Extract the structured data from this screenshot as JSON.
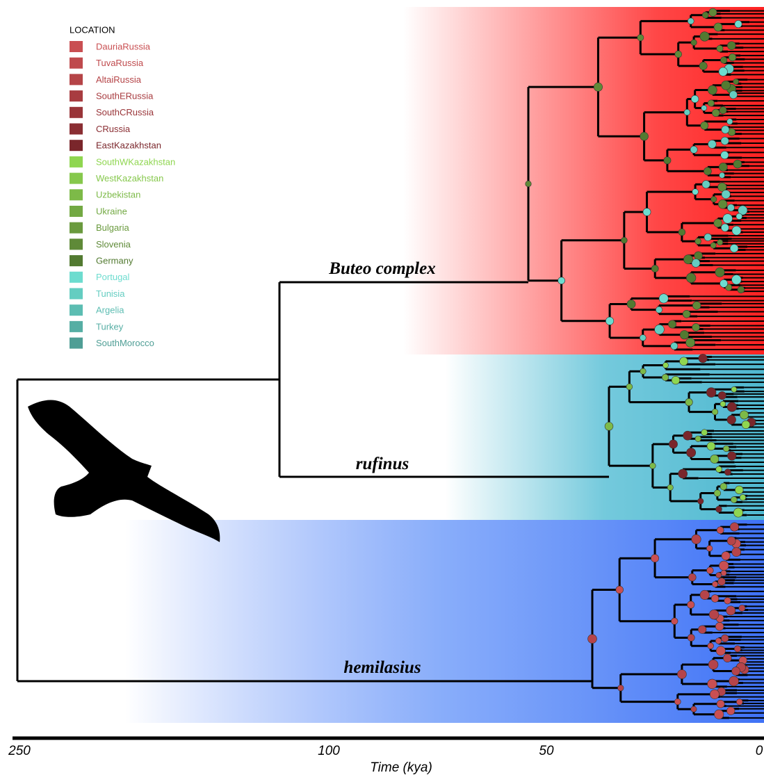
{
  "legend": {
    "title": "LOCATION",
    "items": [
      {
        "label": "DauriaRussia",
        "color": "#c94f52"
      },
      {
        "label": "TuvaRussia",
        "color": "#bf4a4d"
      },
      {
        "label": "AltaiRussia",
        "color": "#b54447"
      },
      {
        "label": "SouthERussia",
        "color": "#a83c40"
      },
      {
        "label": "SouthCRussia",
        "color": "#993539"
      },
      {
        "label": "CRussia",
        "color": "#8a2e33"
      },
      {
        "label": "EastKazakhstan",
        "color": "#7a262b"
      },
      {
        "label": "SouthWKazakhstan",
        "color": "#8fd650"
      },
      {
        "label": "WestKazakhstan",
        "color": "#86c84c"
      },
      {
        "label": "Uzbekistan",
        "color": "#7dba48"
      },
      {
        "label": "Ukraine",
        "color": "#73a943"
      },
      {
        "label": "Bulgaria",
        "color": "#6a9a3e"
      },
      {
        "label": "Slovenia",
        "color": "#5f8a38"
      },
      {
        "label": "Germany",
        "color": "#527a31"
      },
      {
        "label": "Portugal",
        "color": "#6ddccf"
      },
      {
        "label": "Tunisia",
        "color": "#64cdc1"
      },
      {
        "label": "Argelia",
        "color": "#5cbdb2"
      },
      {
        "label": "Turkey",
        "color": "#56aea4"
      },
      {
        "label": "SouthMorocco",
        "color": "#4f9e95"
      }
    ]
  },
  "clades": [
    "Buteo complex",
    "rufinus",
    "hemilasius"
  ],
  "axis": {
    "ticks": [
      "250",
      "100",
      "50",
      "0"
    ],
    "title": "Time (kya)"
  }
}
